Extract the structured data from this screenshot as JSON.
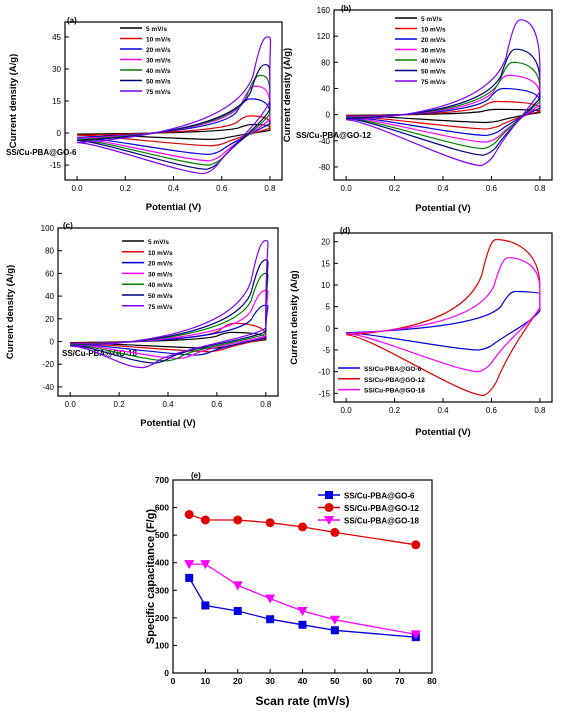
{
  "chart_data": [
    {
      "type": "line",
      "panel": "(a)",
      "annotation": "SS/Cu-PBA@GO-6",
      "xlabel": "Potential (V)",
      "ylabel": "Current density (A/g)",
      "xlim": [
        -0.05,
        0.85
      ],
      "ylim": [
        -22,
        52
      ],
      "xticks": [
        0.0,
        0.2,
        0.4,
        0.6,
        0.8
      ],
      "yticks": [
        -15,
        0,
        15,
        30,
        45
      ],
      "legend_position": "top-center",
      "series": [
        {
          "name": "5 mV/s",
          "color": "#000000",
          "peak": [
            0.73,
            4
          ],
          "valley": [
            0.56,
            -3
          ],
          "ends": [
            -0.5,
            2.5
          ]
        },
        {
          "name": "10 mV/s",
          "color": "#e00000",
          "peak": [
            0.72,
            8
          ],
          "valley": [
            0.56,
            -6
          ],
          "ends": [
            -1,
            4.5
          ]
        },
        {
          "name": "20 mV/s",
          "color": "#0000e0",
          "peak": [
            0.72,
            16
          ],
          "valley": [
            0.55,
            -10
          ],
          "ends": [
            -2,
            9
          ]
        },
        {
          "name": "30 mV/s",
          "color": "#ff00ff",
          "peak": [
            0.74,
            22
          ],
          "valley": [
            0.55,
            -13
          ],
          "ends": [
            -2.5,
            13
          ]
        },
        {
          "name": "40 mV/s",
          "color": "#008000",
          "peak": [
            0.76,
            27
          ],
          "valley": [
            0.55,
            -15
          ],
          "ends": [
            -3,
            18
          ]
        },
        {
          "name": "50 mV/s",
          "color": "#000080",
          "peak": [
            0.78,
            32
          ],
          "valley": [
            0.54,
            -17
          ],
          "ends": [
            -3.5,
            22
          ]
        },
        {
          "name": "75 mV/s",
          "color": "#8000ff",
          "peak": [
            0.79,
            45
          ],
          "valley": [
            0.53,
            -19
          ],
          "ends": [
            -4.5,
            30
          ]
        }
      ]
    },
    {
      "type": "line",
      "panel": "(b)",
      "annotation": "SS/Cu-PBA@GO-12",
      "xlabel": "Potential (V)",
      "ylabel": "Current density (A/g)",
      "xlim": [
        -0.05,
        0.85
      ],
      "ylim": [
        -100,
        160
      ],
      "xticks": [
        0.0,
        0.2,
        0.4,
        0.6,
        0.8
      ],
      "yticks": [
        -80,
        -40,
        0,
        40,
        80,
        120,
        160
      ],
      "legend_position": "top-center",
      "series": [
        {
          "name": "5 mV/s",
          "color": "#000000",
          "peak": [
            0.62,
            8
          ],
          "valley": [
            0.58,
            -12
          ],
          "ends": [
            -1,
            6
          ]
        },
        {
          "name": "10 mV/s",
          "color": "#e00000",
          "peak": [
            0.62,
            20
          ],
          "valley": [
            0.58,
            -22
          ],
          "ends": [
            -2,
            10
          ]
        },
        {
          "name": "20 mV/s",
          "color": "#0000e0",
          "peak": [
            0.65,
            40
          ],
          "valley": [
            0.58,
            -32
          ],
          "ends": [
            -3,
            20
          ]
        },
        {
          "name": "30 mV/s",
          "color": "#ff00ff",
          "peak": [
            0.67,
            60
          ],
          "valley": [
            0.58,
            -42
          ],
          "ends": [
            -4,
            30
          ]
        },
        {
          "name": "40 mV/s",
          "color": "#008000",
          "peak": [
            0.69,
            80
          ],
          "valley": [
            0.57,
            -52
          ],
          "ends": [
            -5,
            40
          ]
        },
        {
          "name": "50 mV/s",
          "color": "#000080",
          "peak": [
            0.7,
            100
          ],
          "valley": [
            0.57,
            -62
          ],
          "ends": [
            -6,
            50
          ]
        },
        {
          "name": "75 mV/s",
          "color": "#8000ff",
          "peak": [
            0.72,
            145
          ],
          "valley": [
            0.56,
            -78
          ],
          "ends": [
            -8,
            70
          ]
        }
      ]
    },
    {
      "type": "line",
      "panel": "(c)",
      "annotation": "SS/Cu-PBA@GO-18",
      "xlabel": "Potential (V)",
      "ylabel": "Current density (A/g)",
      "xlim": [
        -0.05,
        0.85
      ],
      "ylim": [
        -48,
        100
      ],
      "xticks": [
        0.0,
        0.2,
        0.4,
        0.6,
        0.8
      ],
      "yticks": [
        -40,
        -20,
        0,
        20,
        40,
        60,
        80,
        100
      ],
      "legend_position": "top-center",
      "series": [
        {
          "name": "5 mV/s",
          "color": "#000000",
          "peak": [
            0.66,
            8
          ],
          "valley": [
            0.58,
            -6
          ],
          "ends": [
            -1,
            3
          ]
        },
        {
          "name": "10 mV/s",
          "color": "#e00000",
          "peak": [
            0.67,
            16
          ],
          "valley": [
            0.57,
            -9
          ],
          "ends": [
            -1.5,
            5
          ]
        },
        {
          "name": "20 mV/s",
          "color": "#0000e0",
          "peak": [
            0.8,
            32
          ],
          "valley": [
            0.52,
            -12
          ],
          "ends": [
            -2,
            7
          ]
        },
        {
          "name": "30 mV/s",
          "color": "#ff00ff",
          "peak": [
            0.8,
            45
          ],
          "valley": [
            0.45,
            -15
          ],
          "ends": [
            -2.5,
            10
          ]
        },
        {
          "name": "40 mV/s",
          "color": "#008000",
          "peak": [
            0.8,
            60
          ],
          "valley": [
            0.4,
            -17
          ],
          "ends": [
            -3,
            14
          ]
        },
        {
          "name": "50 mV/s",
          "color": "#000080",
          "peak": [
            0.8,
            72
          ],
          "valley": [
            0.35,
            -19
          ],
          "ends": [
            -3.5,
            18
          ]
        },
        {
          "name": "75 mV/s",
          "color": "#8000ff",
          "peak": [
            0.8,
            89
          ],
          "valley": [
            0.3,
            -23
          ],
          "ends": [
            -4,
            24
          ]
        }
      ]
    },
    {
      "type": "line",
      "panel": "(d)",
      "xlabel": "Potential (V)",
      "ylabel": "Current density (A/g)",
      "xlim": [
        -0.05,
        0.85
      ],
      "ylim": [
        -17,
        22
      ],
      "xticks": [
        0.0,
        0.2,
        0.4,
        0.6,
        0.8
      ],
      "yticks": [
        -15,
        -10,
        -5,
        0,
        5,
        10,
        15,
        20
      ],
      "legend_position": "bottom-left",
      "series": [
        {
          "name": "SS/Cu-PBA@GO-6",
          "color": "#0000e0",
          "peak": [
            0.7,
            8.5
          ],
          "valley": [
            0.55,
            -5
          ],
          "ends": [
            -1,
            8
          ]
        },
        {
          "name": "SS/Cu-PBA@GO-12",
          "color": "#e00000",
          "peak": [
            0.62,
            20.5
          ],
          "valley": [
            0.57,
            -15.5
          ],
          "ends": [
            -1.5,
            9.5
          ]
        },
        {
          "name": "SS/Cu-PBA@GO-18",
          "color": "#ff00ff",
          "peak": [
            0.67,
            16.3
          ],
          "valley": [
            0.55,
            -10
          ],
          "ends": [
            -1.2,
            9
          ]
        }
      ]
    },
    {
      "type": "line",
      "panel": "(e)",
      "xlabel": "Scan rate (mV/s)",
      "ylabel": "Specific capacitance (F/g)",
      "xlim": [
        0,
        80
      ],
      "ylim": [
        0,
        700
      ],
      "xticks": [
        0,
        10,
        20,
        30,
        40,
        50,
        60,
        70,
        80
      ],
      "yticks": [
        0,
        100,
        200,
        300,
        400,
        500,
        600,
        700
      ],
      "legend_position": "top-right",
      "x": [
        5,
        10,
        20,
        30,
        40,
        50,
        75
      ],
      "series": [
        {
          "name": "SS/Cu-PBA@GO-6",
          "color": "#0000e0",
          "marker": "square",
          "values": [
            345,
            245,
            225,
            195,
            175,
            155,
            130
          ]
        },
        {
          "name": "SS/Cu-PBA@GO-12",
          "color": "#e00000",
          "marker": "circle",
          "values": [
            575,
            555,
            555,
            545,
            530,
            510,
            465
          ]
        },
        {
          "name": "SS/Cu-PBA@GO-18",
          "color": "#ff00ff",
          "marker": "triangle-down",
          "values": [
            395,
            395,
            318,
            270,
            225,
            193,
            140
          ]
        }
      ]
    }
  ]
}
